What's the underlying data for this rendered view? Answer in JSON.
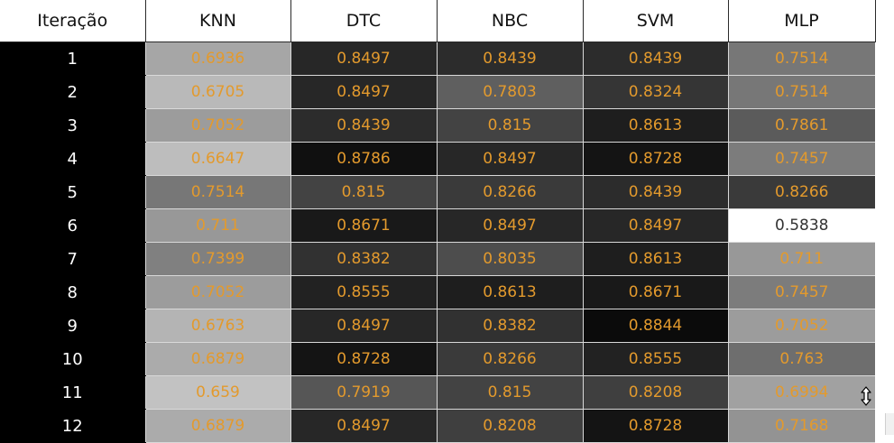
{
  "table": {
    "headers": [
      "Iteração",
      "KNN",
      "DTC",
      "NBC",
      "SVM",
      "MLP"
    ],
    "rows": [
      {
        "iter": "1",
        "values": [
          "0.6936",
          "0.8497",
          "0.8439",
          "0.8439",
          "0.7514"
        ]
      },
      {
        "iter": "2",
        "values": [
          "0.6705",
          "0.8497",
          "0.7803",
          "0.8324",
          "0.7514"
        ]
      },
      {
        "iter": "3",
        "values": [
          "0.7052",
          "0.8439",
          "0.815",
          "0.8613",
          "0.7861"
        ]
      },
      {
        "iter": "4",
        "values": [
          "0.6647",
          "0.8786",
          "0.8497",
          "0.8728",
          "0.7457"
        ]
      },
      {
        "iter": "5",
        "values": [
          "0.7514",
          "0.815",
          "0.8266",
          "0.8439",
          "0.8266"
        ]
      },
      {
        "iter": "6",
        "values": [
          "0.711",
          "0.8671",
          "0.8497",
          "0.8497",
          "0.5838"
        ]
      },
      {
        "iter": "7",
        "values": [
          "0.7399",
          "0.8382",
          "0.8035",
          "0.8613",
          "0.711"
        ]
      },
      {
        "iter": "8",
        "values": [
          "0.7052",
          "0.8555",
          "0.8613",
          "0.8671",
          "0.7457"
        ]
      },
      {
        "iter": "9",
        "values": [
          "0.6763",
          "0.8497",
          "0.8382",
          "0.8844",
          "0.7052"
        ]
      },
      {
        "iter": "10",
        "values": [
          "0.6879",
          "0.8728",
          "0.8266",
          "0.8555",
          "0.763"
        ]
      },
      {
        "iter": "11",
        "values": [
          "0.659",
          "0.7919",
          "0.815",
          "0.8208",
          "0.6994"
        ]
      },
      {
        "iter": "12",
        "values": [
          "0.6879",
          "0.8497",
          "0.8208",
          "0.8728",
          "0.7168"
        ]
      }
    ]
  },
  "colors": {
    "iteration_column_bg": "#000000",
    "iteration_column_text": "#ffffff",
    "value_text": "#e39a2d",
    "cell_scale_low": "#ffffff",
    "cell_scale_high": "#0b0b0b"
  },
  "cursor_icon": "vertical-resize-cursor-icon"
}
